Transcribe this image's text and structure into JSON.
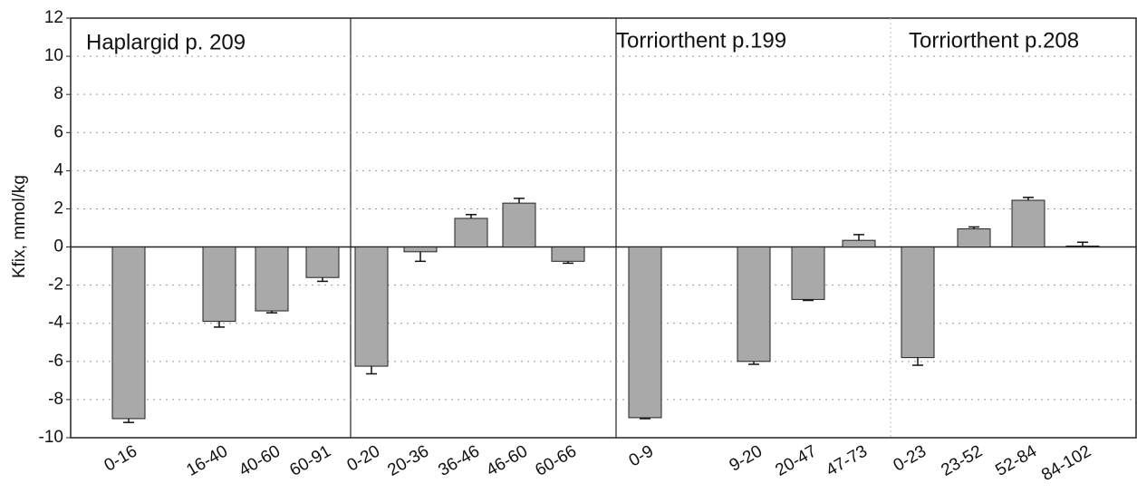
{
  "chart_data": {
    "type": "bar",
    "ylabel": "Kfix, mmol/kg",
    "annotations": [
      "Haplargid p. 209",
      "Torriorthent p.199",
      "Torriorthent p.208"
    ],
    "categories": [
      "0-16",
      "16-40",
      "40-60",
      "60-91",
      "0-20",
      "20-36",
      "36-46",
      "46-60",
      "60-66",
      "0-9",
      "9-20",
      "20-47",
      "47-73",
      "0-23",
      "23-52",
      "52-84",
      "84-102"
    ],
    "values": [
      -9.0,
      -3.9,
      -3.35,
      -1.6,
      -6.25,
      -0.25,
      1.5,
      2.3,
      -0.75,
      -8.95,
      -6.0,
      -2.75,
      0.35,
      -5.8,
      0.95,
      2.45,
      0.05
    ],
    "errors": [
      0.2,
      0.3,
      0.1,
      0.2,
      0.4,
      0.5,
      0.2,
      0.25,
      0.1,
      0.05,
      0.15,
      0.05,
      0.3,
      0.4,
      0.1,
      0.15,
      0.2
    ],
    "color": "#a9a9a9",
    "ylim": [
      -10,
      12
    ],
    "yticks": [
      -10,
      -8,
      -6,
      -4,
      -2,
      0,
      2,
      4,
      6,
      8,
      10,
      12
    ],
    "grid": true
  }
}
